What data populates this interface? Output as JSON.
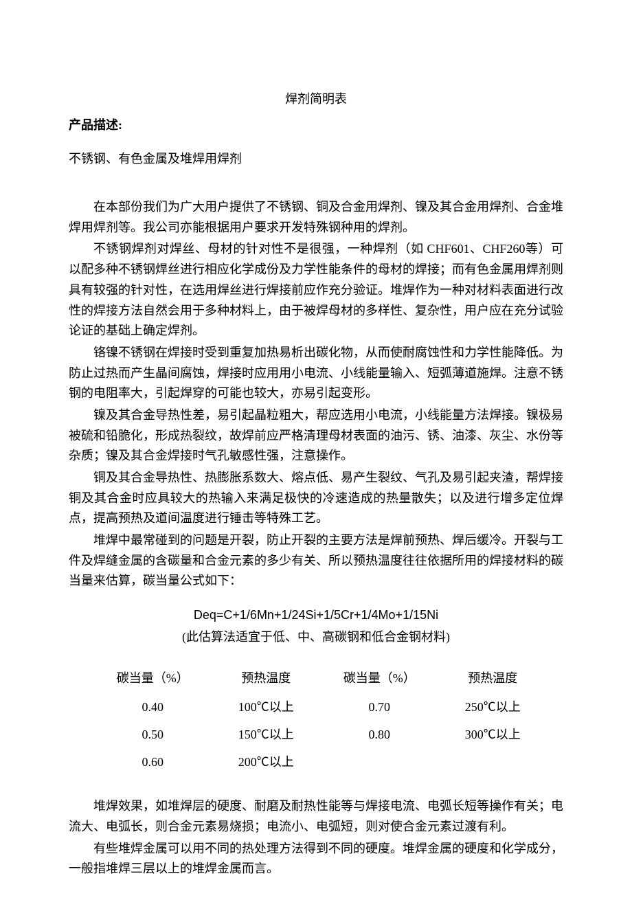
{
  "title": "焊剂简明表",
  "product_label": "产品描述:",
  "subtitle": "不锈钢、有色金属及堆焊用焊剂",
  "paragraphs": {
    "p1": "在本部份我们为广大用户提供了不锈钢、铜及合金用焊剂、镍及其合金用焊剂、合金堆焊用焊剂等。我公司亦能根据用户要求开发特殊钢种用的焊剂。",
    "p2": "不锈钢焊剂对焊丝、母材的针对性不是很强，一种焊剂（如 CHF601、CHF260等）可以配多种不锈钢焊丝进行相应化学成份及力学性能条件的母材的焊接；而有色金属用焊剂则具有较强的针对性，在选用焊丝进行焊接前应作充分验证。堆焊作为一种对材料表面进行改性的焊接方法自然会用于多种材料上，由于被焊母材的多样性、复杂性，用户应在充分试验论证的基础上确定焊剂。",
    "p3": "铬镍不锈钢在焊接时受到重复加热易析出碳化物，从而使耐腐蚀性和力学性能降低。为防止过热而产生晶间腐蚀，焊接时应用用小电流、小线能量输入、短弧薄道施焊。注意不锈钢的电阻率大，引起焊穿的可能也较大，亦易引起变形。",
    "p4": "镍及其合金导热性差，易引起晶粒粗大，帮应选用小电流，小线能量方法焊接。镍极易被硫和铅脆化，形成热裂纹，故焊前应严格清理母材表面的油污、锈、油漆、灰尘、水份等杂质；镍及其合金焊接时气孔敏感性强，注意操作。",
    "p5": "铜及其合金导热性、热膨胀系数大、熔点低、易产生裂纹、气孔及易引起夹渣，帮焊接铜及其合金时应具较大的热输入来满足极快的冷速造成的热量散失；以及进行增多定位焊点，提高预热及道间温度进行锤击等特殊工艺。",
    "p6": "堆焊中最常碰到的问题是开裂，防止开裂的主要方法是焊前预热、焊后缓冷。开裂与工件及焊缝金属的含碳量和合金元素的多少有关、所以预热温度往往依据所用的焊接材料的碳当量来估算，碳当量公式如下：",
    "p7": "堆焊效果，如堆焊层的硬度、耐磨及耐热性能等与焊接电流、电弧长短等操作有关；电流大、电弧长，则合金元素易烧损；电流小、电弧短，则对使合金元素过渡有利。",
    "p8": "有些堆焊金属可以用不同的热处理方法得到不同的硬度。堆焊金属的硬度和化学成分，一般指堆焊三层以上的堆焊金属而言。"
  },
  "formula": {
    "eq": "Deq=C+1/6Mn+1/24Si+1/5Cr+1/4Mo+1/15Ni",
    "note": "(此估算法适宜于低、中、高碳钢和低合金钢材料)"
  },
  "table": {
    "headers": {
      "h1": "碳当量（%）",
      "h2": "预热温度",
      "h3": "碳当量（%）",
      "h4": "预热温度"
    },
    "rows": [
      {
        "c1": "0.40",
        "c2": "100℃以上",
        "c3": "0.70",
        "c4": "250℃以上"
      },
      {
        "c1": "0.50",
        "c2": "150℃以上",
        "c3": "0.80",
        "c4": "300℃以上"
      },
      {
        "c1": "0.60",
        "c2": "200℃以上",
        "c3": "",
        "c4": ""
      }
    ]
  }
}
